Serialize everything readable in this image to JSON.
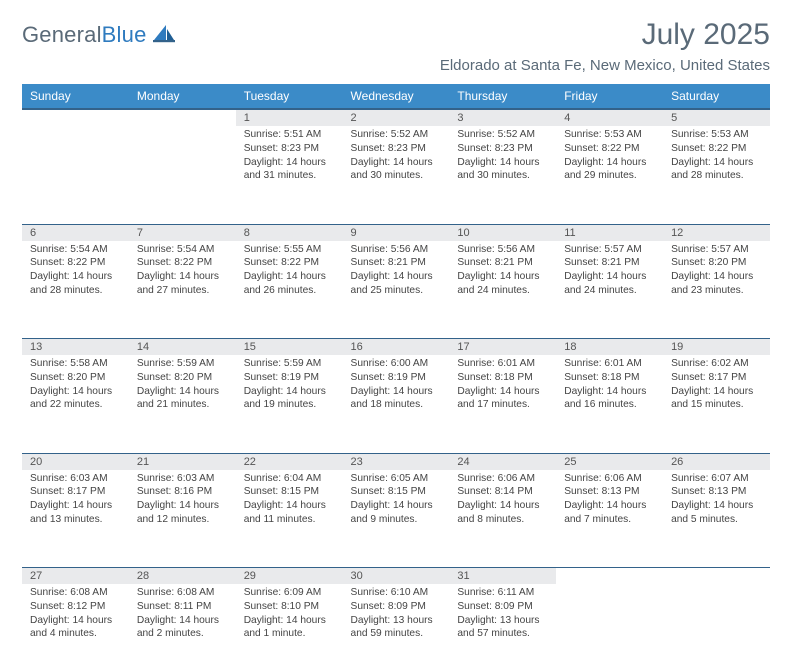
{
  "brand": {
    "name_main": "General",
    "name_accent": "Blue"
  },
  "header": {
    "title": "July 2025",
    "location": "Eldorado at Santa Fe, New Mexico, United States"
  },
  "colors": {
    "header_bg": "#3b8bc8",
    "header_border": "#33628a",
    "daynum_bg": "#e9eaec",
    "text_muted": "#5a6a78",
    "brand_accent": "#2f7bbf"
  },
  "days_of_week": [
    "Sunday",
    "Monday",
    "Tuesday",
    "Wednesday",
    "Thursday",
    "Friday",
    "Saturday"
  ],
  "weeks": [
    [
      null,
      null,
      {
        "n": "1",
        "sunrise": "5:51 AM",
        "sunset": "8:23 PM",
        "daylight": "14 hours and 31 minutes."
      },
      {
        "n": "2",
        "sunrise": "5:52 AM",
        "sunset": "8:23 PM",
        "daylight": "14 hours and 30 minutes."
      },
      {
        "n": "3",
        "sunrise": "5:52 AM",
        "sunset": "8:23 PM",
        "daylight": "14 hours and 30 minutes."
      },
      {
        "n": "4",
        "sunrise": "5:53 AM",
        "sunset": "8:22 PM",
        "daylight": "14 hours and 29 minutes."
      },
      {
        "n": "5",
        "sunrise": "5:53 AM",
        "sunset": "8:22 PM",
        "daylight": "14 hours and 28 minutes."
      }
    ],
    [
      {
        "n": "6",
        "sunrise": "5:54 AM",
        "sunset": "8:22 PM",
        "daylight": "14 hours and 28 minutes."
      },
      {
        "n": "7",
        "sunrise": "5:54 AM",
        "sunset": "8:22 PM",
        "daylight": "14 hours and 27 minutes."
      },
      {
        "n": "8",
        "sunrise": "5:55 AM",
        "sunset": "8:22 PM",
        "daylight": "14 hours and 26 minutes."
      },
      {
        "n": "9",
        "sunrise": "5:56 AM",
        "sunset": "8:21 PM",
        "daylight": "14 hours and 25 minutes."
      },
      {
        "n": "10",
        "sunrise": "5:56 AM",
        "sunset": "8:21 PM",
        "daylight": "14 hours and 24 minutes."
      },
      {
        "n": "11",
        "sunrise": "5:57 AM",
        "sunset": "8:21 PM",
        "daylight": "14 hours and 24 minutes."
      },
      {
        "n": "12",
        "sunrise": "5:57 AM",
        "sunset": "8:20 PM",
        "daylight": "14 hours and 23 minutes."
      }
    ],
    [
      {
        "n": "13",
        "sunrise": "5:58 AM",
        "sunset": "8:20 PM",
        "daylight": "14 hours and 22 minutes."
      },
      {
        "n": "14",
        "sunrise": "5:59 AM",
        "sunset": "8:20 PM",
        "daylight": "14 hours and 21 minutes."
      },
      {
        "n": "15",
        "sunrise": "5:59 AM",
        "sunset": "8:19 PM",
        "daylight": "14 hours and 19 minutes."
      },
      {
        "n": "16",
        "sunrise": "6:00 AM",
        "sunset": "8:19 PM",
        "daylight": "14 hours and 18 minutes."
      },
      {
        "n": "17",
        "sunrise": "6:01 AM",
        "sunset": "8:18 PM",
        "daylight": "14 hours and 17 minutes."
      },
      {
        "n": "18",
        "sunrise": "6:01 AM",
        "sunset": "8:18 PM",
        "daylight": "14 hours and 16 minutes."
      },
      {
        "n": "19",
        "sunrise": "6:02 AM",
        "sunset": "8:17 PM",
        "daylight": "14 hours and 15 minutes."
      }
    ],
    [
      {
        "n": "20",
        "sunrise": "6:03 AM",
        "sunset": "8:17 PM",
        "daylight": "14 hours and 13 minutes."
      },
      {
        "n": "21",
        "sunrise": "6:03 AM",
        "sunset": "8:16 PM",
        "daylight": "14 hours and 12 minutes."
      },
      {
        "n": "22",
        "sunrise": "6:04 AM",
        "sunset": "8:15 PM",
        "daylight": "14 hours and 11 minutes."
      },
      {
        "n": "23",
        "sunrise": "6:05 AM",
        "sunset": "8:15 PM",
        "daylight": "14 hours and 9 minutes."
      },
      {
        "n": "24",
        "sunrise": "6:06 AM",
        "sunset": "8:14 PM",
        "daylight": "14 hours and 8 minutes."
      },
      {
        "n": "25",
        "sunrise": "6:06 AM",
        "sunset": "8:13 PM",
        "daylight": "14 hours and 7 minutes."
      },
      {
        "n": "26",
        "sunrise": "6:07 AM",
        "sunset": "8:13 PM",
        "daylight": "14 hours and 5 minutes."
      }
    ],
    [
      {
        "n": "27",
        "sunrise": "6:08 AM",
        "sunset": "8:12 PM",
        "daylight": "14 hours and 4 minutes."
      },
      {
        "n": "28",
        "sunrise": "6:08 AM",
        "sunset": "8:11 PM",
        "daylight": "14 hours and 2 minutes."
      },
      {
        "n": "29",
        "sunrise": "6:09 AM",
        "sunset": "8:10 PM",
        "daylight": "14 hours and 1 minute."
      },
      {
        "n": "30",
        "sunrise": "6:10 AM",
        "sunset": "8:09 PM",
        "daylight": "13 hours and 59 minutes."
      },
      {
        "n": "31",
        "sunrise": "6:11 AM",
        "sunset": "8:09 PM",
        "daylight": "13 hours and 57 minutes."
      },
      null,
      null
    ]
  ],
  "labels": {
    "sunrise": "Sunrise: ",
    "sunset": "Sunset: ",
    "daylight": "Daylight: "
  }
}
